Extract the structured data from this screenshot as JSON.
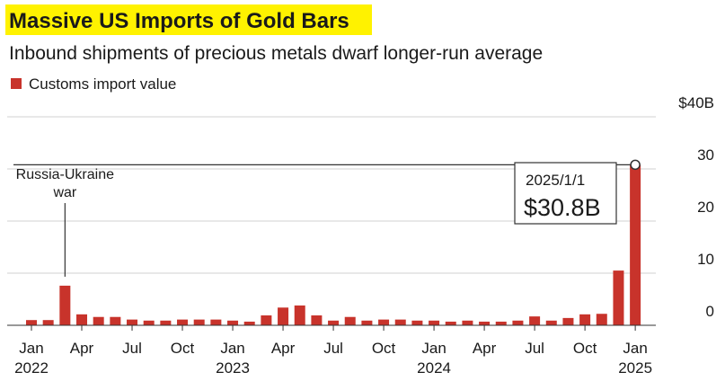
{
  "chart_data": {
    "type": "bar",
    "title": "Massive US Imports of Gold Bars",
    "subtitle": "Inbound shipments of precious metals dwarf longer-run average",
    "categories": [
      "Jan 2022",
      null,
      null,
      "Apr",
      null,
      null,
      "Jul",
      null,
      null,
      "Oct",
      null,
      null,
      "Jan 2023",
      null,
      null,
      "Apr",
      null,
      null,
      "Jul",
      null,
      null,
      "Oct",
      null,
      null,
      "Jan 2024",
      null,
      null,
      "Apr",
      null,
      null,
      "Jul",
      null,
      null,
      "Oct",
      null,
      null,
      "Jan 2025"
    ],
    "series": [
      {
        "name": "Customs import value",
        "color": "#c8332b",
        "values": [
          1.0,
          1.0,
          7.6,
          2.1,
          1.6,
          1.6,
          1.1,
          0.9,
          0.9,
          1.1,
          1.1,
          1.1,
          0.9,
          0.7,
          1.9,
          3.4,
          3.8,
          1.9,
          0.9,
          1.6,
          0.9,
          1.1,
          1.1,
          0.9,
          0.9,
          0.7,
          0.9,
          0.7,
          0.7,
          0.9,
          1.7,
          0.9,
          1.4,
          2.1,
          2.2,
          10.5,
          30.8
        ],
        "value_labels": [
          null,
          null,
          null,
          null,
          null,
          null,
          null,
          null,
          null,
          null,
          null,
          null,
          null,
          null,
          null,
          null,
          null,
          null,
          null,
          null,
          null,
          null,
          null,
          null,
          null,
          null,
          null,
          null,
          null,
          null,
          null,
          null,
          null,
          null,
          null,
          null,
          "$30.8B"
        ]
      }
    ],
    "ylim": [
      0,
      40
    ],
    "yticks": [
      0,
      10,
      20,
      30,
      {
        "value": 40,
        "label": "$40B"
      }
    ],
    "grid": true,
    "annotations": {
      "event": "Russia-Ukraine war",
      "callout_date": "2025/1/1"
    }
  }
}
